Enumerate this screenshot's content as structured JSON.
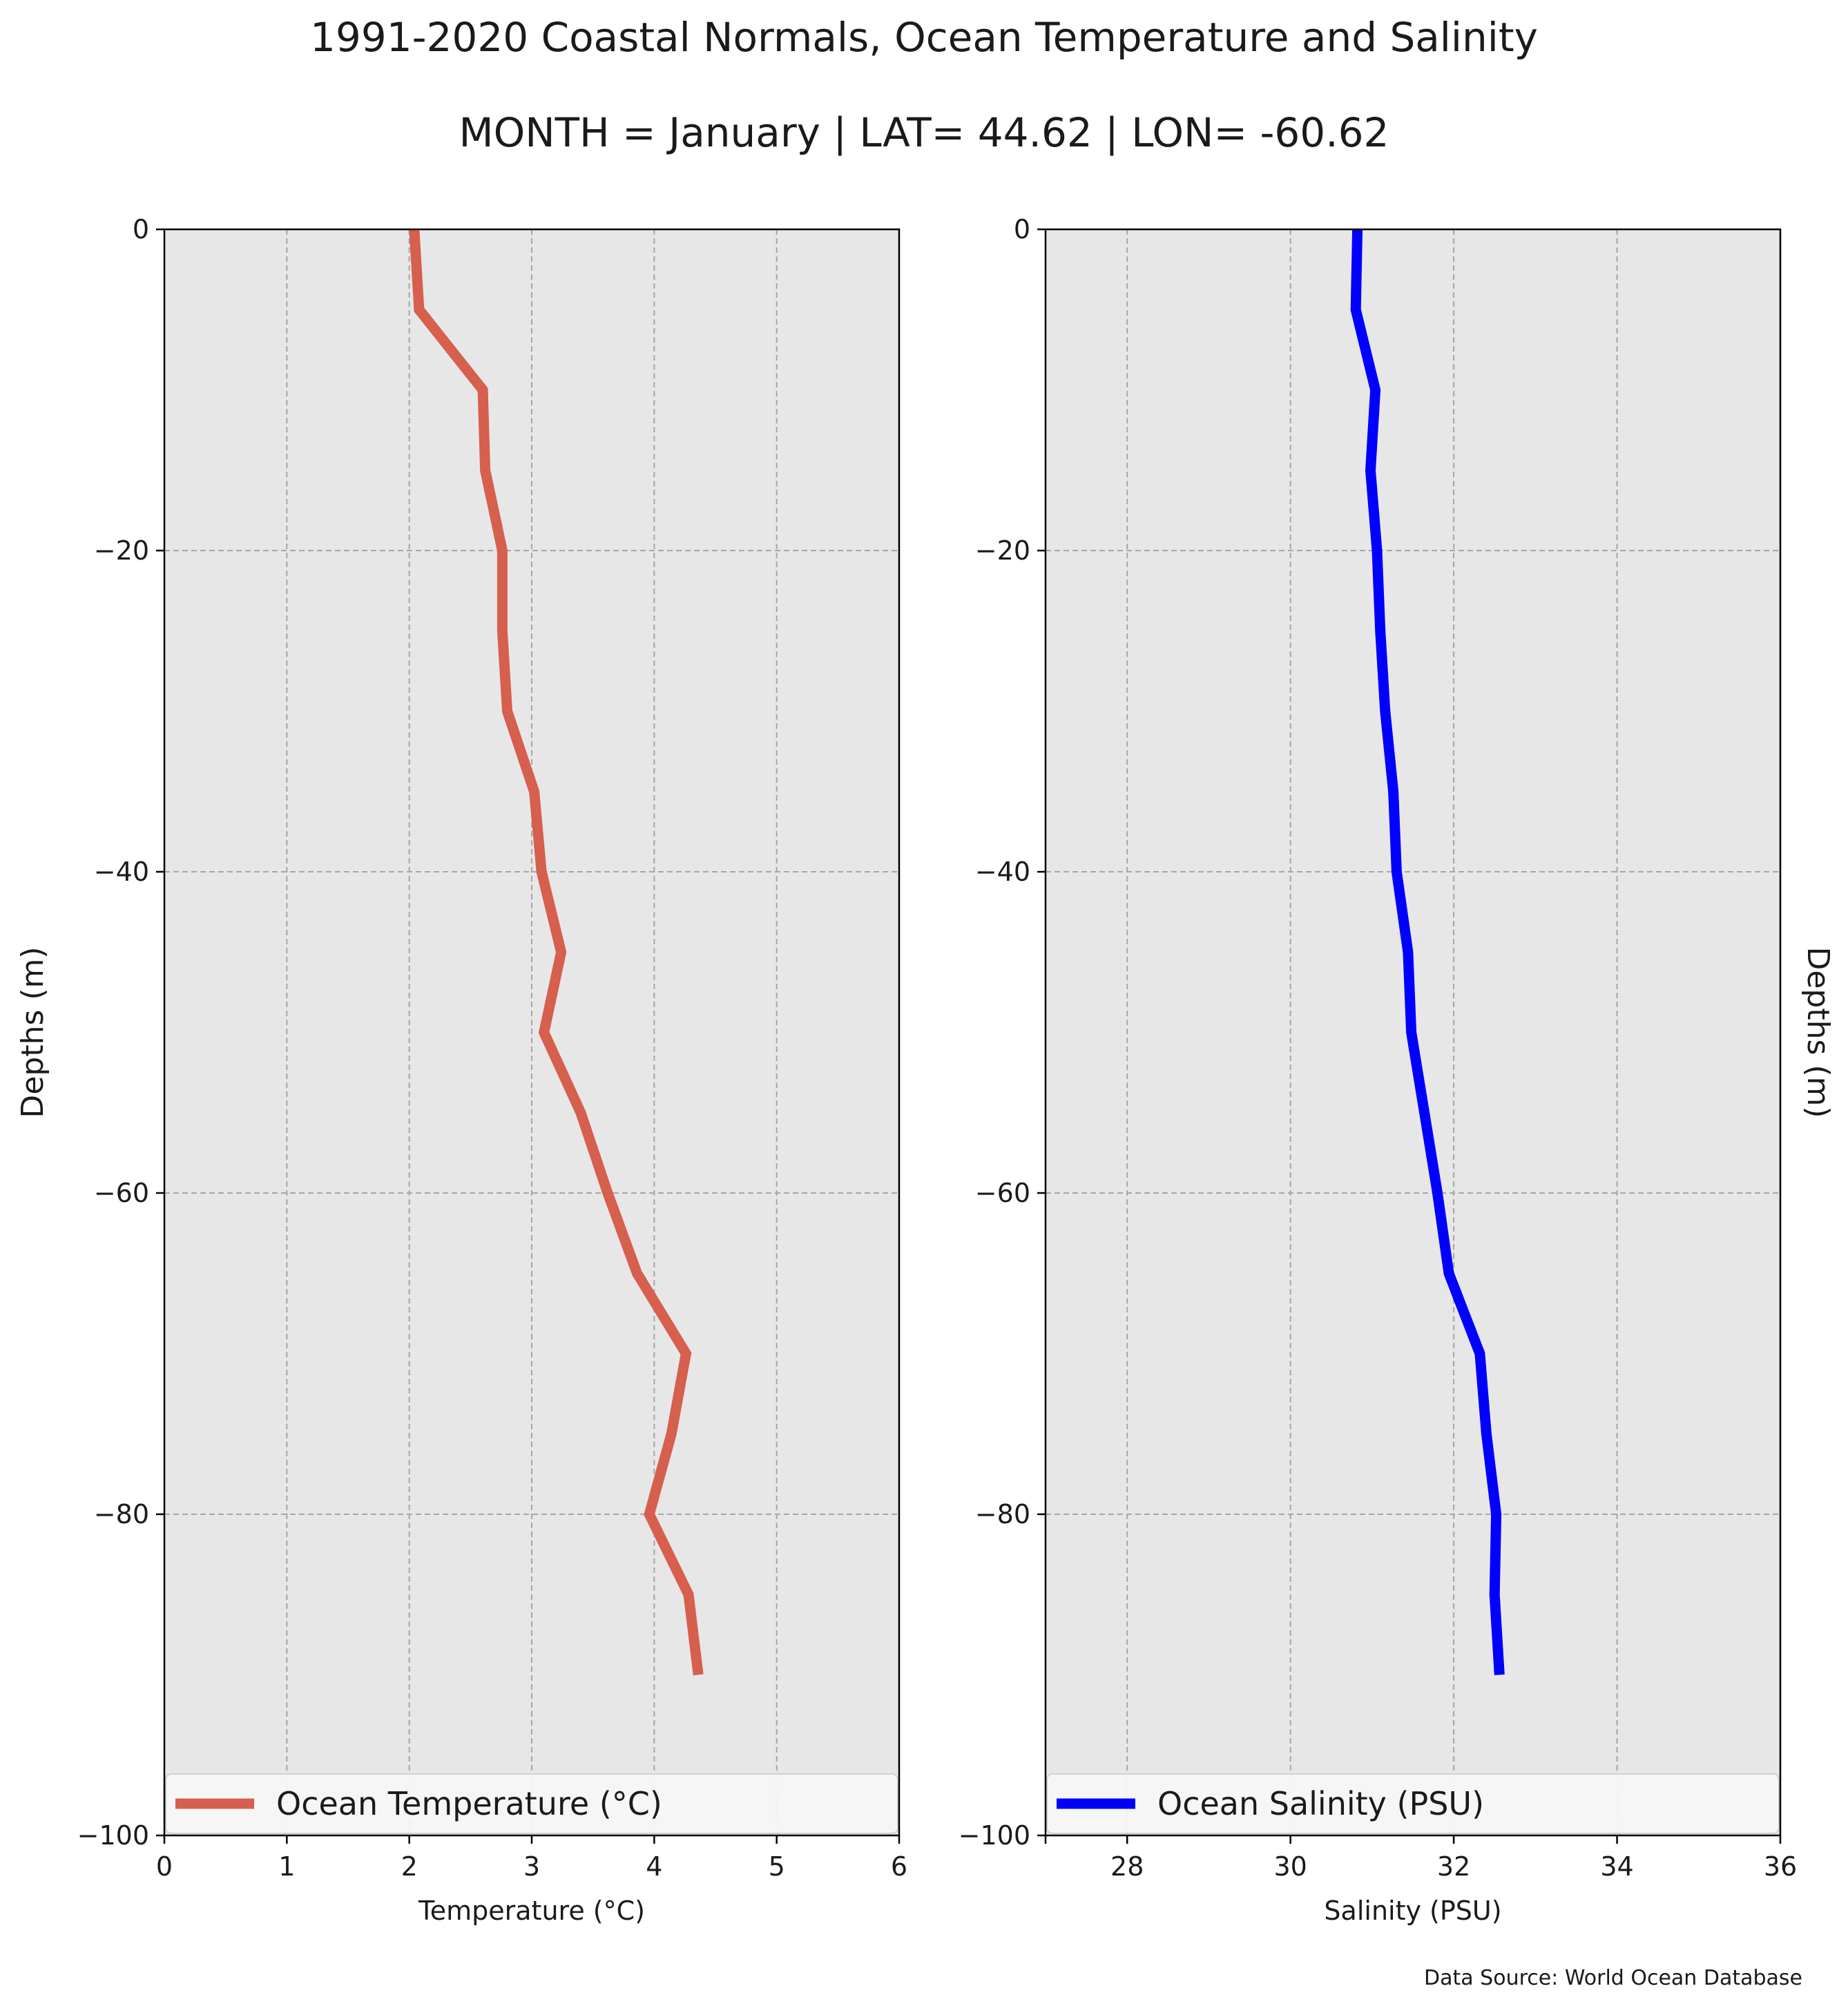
{
  "figure": {
    "title": "1991-2020 Coastal Normals, Ocean Temperature and Salinity",
    "subtitle": "MONTH = January | LAT= 44.62 | LON= -60.62",
    "source": "Data Source: World Ocean Database",
    "background": "#ffffff",
    "axes_face": "#e8e7e8"
  },
  "chart_data": [
    {
      "type": "line",
      "xlabel": "Temperature (°C)",
      "ylabel": "Depths (m)",
      "xlim": [
        0,
        6
      ],
      "ylim": [
        -100,
        0
      ],
      "xticks": [
        0,
        1,
        2,
        3,
        4,
        5,
        6
      ],
      "yticks": [
        0,
        -20,
        -40,
        -60,
        -80,
        -100
      ],
      "ytick_labels": [
        "0",
        "−20",
        "−40",
        "−60",
        "−80",
        "−100"
      ],
      "xtick_labels": [
        "0",
        "1",
        "2",
        "3",
        "4",
        "5",
        "6"
      ],
      "grid": true,
      "legend_position": "lower-center",
      "series": [
        {
          "name": "Ocean Temperature (°C)",
          "color": "#d65f4d",
          "x": [
            2.04,
            2.08,
            2.6,
            2.62,
            2.76,
            2.76,
            2.8,
            3.02,
            3.08,
            3.24,
            3.1,
            3.4,
            3.62,
            3.86,
            4.26,
            4.14,
            3.96,
            4.28,
            4.36
          ],
          "y": [
            0,
            -5,
            -10,
            -15,
            -20,
            -25,
            -30,
            -35,
            -40,
            -45,
            -50,
            -55,
            -60,
            -65,
            -70,
            -75,
            -80,
            -85,
            -90
          ]
        }
      ]
    },
    {
      "type": "line",
      "xlabel": "Salinity (PSU)",
      "ylabel": "Depths (m)",
      "xlim": [
        27,
        36
      ],
      "ylim": [
        -100,
        0
      ],
      "xticks": [
        28,
        30,
        32,
        34,
        36
      ],
      "yticks": [
        0,
        -20,
        -40,
        -60,
        -80,
        -100
      ],
      "ytick_labels": [
        "0",
        "−20",
        "−40",
        "−60",
        "−80",
        "−100"
      ],
      "xtick_labels": [
        "28",
        "30",
        "32",
        "34",
        "36"
      ],
      "grid": true,
      "legend_position": "lower-center",
      "series": [
        {
          "name": "Ocean Salinity (PSU)",
          "color": "#0000ff",
          "x": [
            30.82,
            30.8,
            31.04,
            30.98,
            31.06,
            31.1,
            31.16,
            31.26,
            31.3,
            31.44,
            31.48,
            31.64,
            31.8,
            31.94,
            32.32,
            32.4,
            32.52,
            32.5,
            32.56
          ],
          "y": [
            0,
            -5,
            -10,
            -15,
            -20,
            -25,
            -30,
            -35,
            -40,
            -45,
            -50,
            -55,
            -60,
            -65,
            -70,
            -75,
            -80,
            -85,
            -90
          ]
        }
      ]
    }
  ]
}
